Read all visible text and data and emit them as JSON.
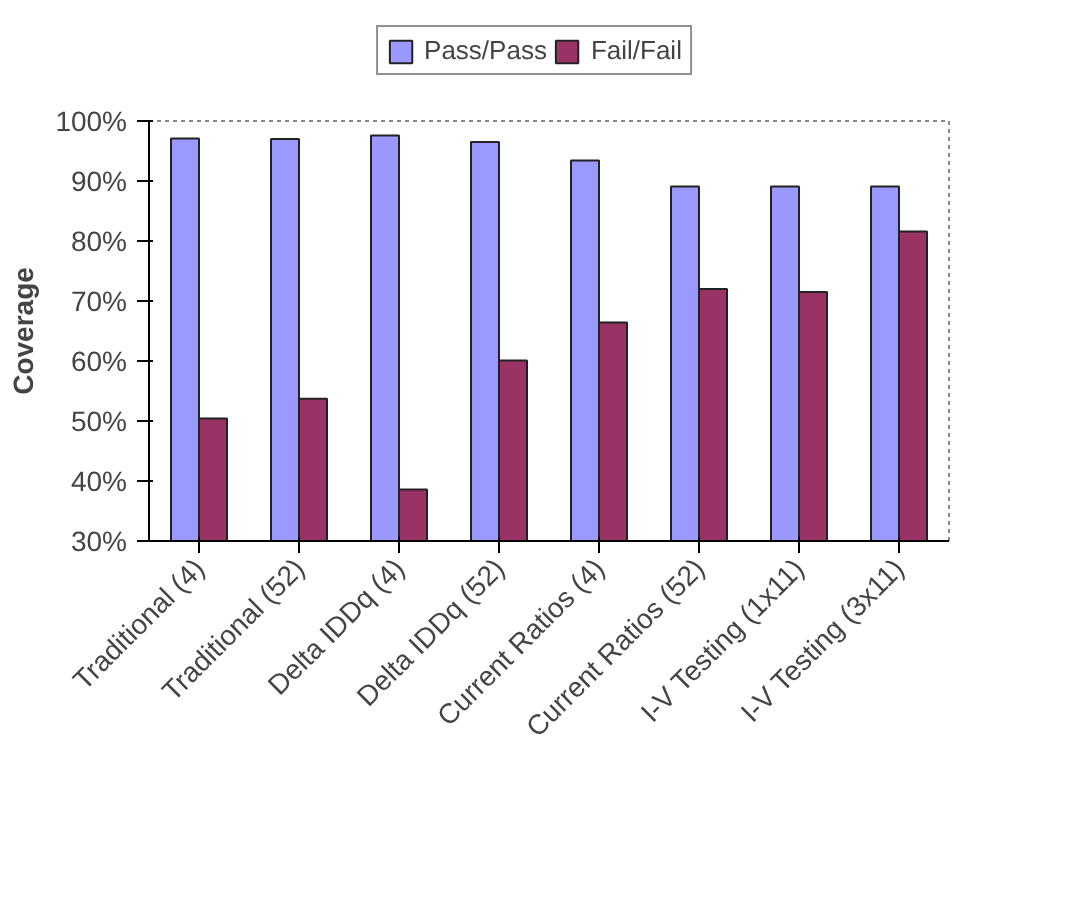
{
  "chart_data": {
    "type": "bar",
    "ylabel": "Coverage",
    "categories": [
      "Traditional (4)",
      "Traditional (52)",
      "Delta IDDq (4)",
      "Delta IDDq (52)",
      "Current Ratios (4)",
      "Current Ratios (52)",
      "I-V Testing (1x11)",
      "I-V Testing (3x11)"
    ],
    "series": [
      {
        "name": "Pass/Pass",
        "color": "#9999ff",
        "values": [
          97.1,
          97.0,
          97.6,
          96.5,
          93.4,
          89.1,
          89.1,
          89.1
        ]
      },
      {
        "name": "Fail/Fail",
        "color": "#993366",
        "values": [
          50.4,
          53.7,
          38.6,
          60.1,
          66.4,
          72.0,
          71.5,
          81.6
        ]
      }
    ],
    "ylim": [
      30,
      100
    ],
    "yticks": [
      {
        "value": 30,
        "label": "30%"
      },
      {
        "value": 40,
        "label": "40%"
      },
      {
        "value": 50,
        "label": "50%"
      },
      {
        "value": 60,
        "label": "60%"
      },
      {
        "value": 70,
        "label": "70%"
      },
      {
        "value": 80,
        "label": "80%"
      },
      {
        "value": 90,
        "label": "90%"
      },
      {
        "value": 100,
        "label": "100%"
      }
    ],
    "grid": false,
    "legend": "top"
  }
}
